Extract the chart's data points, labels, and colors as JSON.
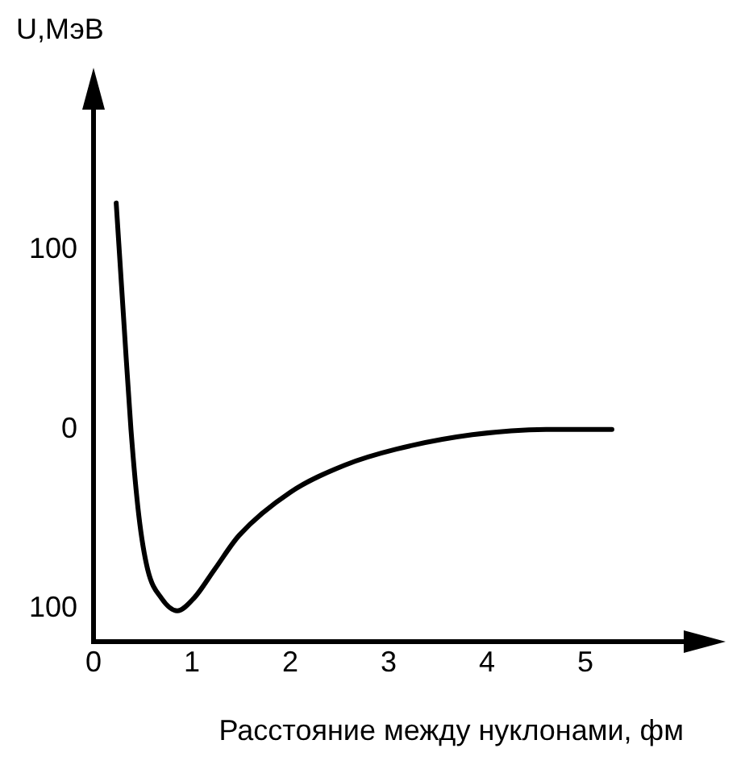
{
  "chart_data": {
    "type": "line",
    "xlabel": "Расстояние между нуклонами, фм",
    "ylabel": "U,МэВ",
    "x": [
      0.23,
      0.31,
      0.38,
      0.46,
      0.55,
      0.69,
      0.85,
      1.02,
      1.23,
      1.48,
      2.0,
      2.55,
      3.08,
      3.85,
      4.6,
      5.27
    ],
    "series": [
      {
        "color": "#000000",
        "values": [
          126,
          58,
          0,
          -48,
          -78,
          -94,
          -101,
          -94,
          -78,
          -59,
          -35,
          -20,
          -11,
          -3,
          0,
          0
        ]
      }
    ],
    "xlim": [
      0,
      6
    ],
    "xticks": [
      0,
      1,
      2,
      3,
      4,
      5
    ],
    "ylim": [
      -118,
      178
    ],
    "yticks": [
      {
        "value": -100,
        "label": "100"
      },
      0,
      100
    ],
    "grid": false,
    "legend": false,
    "marker": "none",
    "line_style": "solid"
  }
}
